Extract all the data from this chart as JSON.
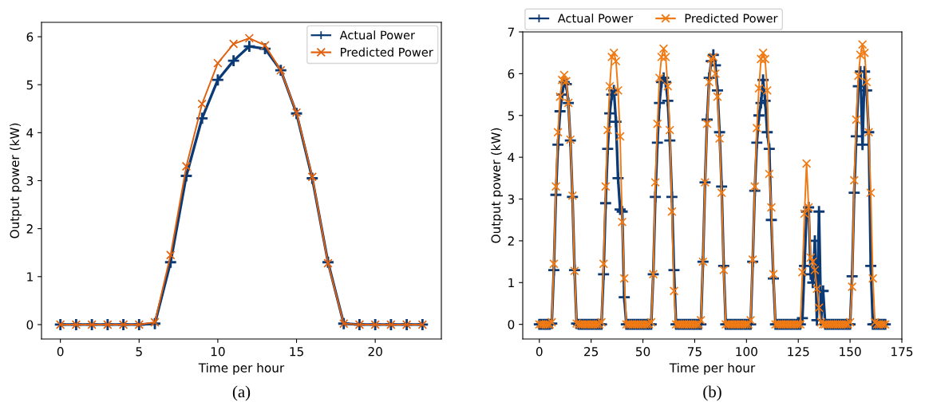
{
  "chart_data": [
    {
      "type": "line",
      "xlabel": "Time per hour",
      "ylabel": "Output power (kW)",
      "annotations": [
        "(a)"
      ],
      "legend": "top right",
      "grid": false,
      "line_style": "solid",
      "x": [
        0,
        1,
        2,
        3,
        4,
        5,
        6,
        7,
        8,
        9,
        10,
        11,
        12,
        13,
        14,
        15,
        16,
        17,
        18,
        19,
        20,
        21,
        22,
        23
      ],
      "xlim": [
        -1.2,
        24.2
      ],
      "xticks": [
        0,
        5,
        10,
        15,
        20
      ],
      "ylim": [
        -0.3,
        6.3
      ],
      "yticks": [
        0,
        1,
        2,
        3,
        4,
        5,
        6
      ],
      "series": [
        {
          "name": "Actual Power",
          "color": "#0b3a75",
          "marker": "plus",
          "values": [
            0,
            0,
            0,
            0,
            0,
            0,
            0.02,
            1.3,
            3.1,
            4.3,
            5.1,
            5.5,
            5.8,
            5.75,
            5.3,
            4.4,
            3.05,
            1.3,
            0.02,
            0,
            0,
            0,
            0,
            0
          ]
        },
        {
          "name": "Predicted Power",
          "color": "#e0600e",
          "marker": "cross",
          "values": [
            0,
            0,
            0,
            0,
            0,
            0,
            0.05,
            1.45,
            3.3,
            4.6,
            5.45,
            5.85,
            5.97,
            5.82,
            5.3,
            4.42,
            3.08,
            1.28,
            0.02,
            0,
            0,
            0,
            0,
            0
          ]
        }
      ]
    },
    {
      "type": "line",
      "xlabel": "Time per hour",
      "ylabel": "Output power (kW)",
      "annotations": [
        "(b)"
      ],
      "legend": "top left",
      "grid": false,
      "line_style": "solid",
      "x": [
        0,
        1,
        2,
        3,
        4,
        5,
        6,
        7,
        8,
        9,
        10,
        11,
        12,
        13,
        14,
        15,
        16,
        17,
        18,
        19,
        20,
        21,
        22,
        23,
        24,
        25,
        26,
        27,
        28,
        29,
        30,
        31,
        32,
        33,
        34,
        35,
        36,
        37,
        38,
        39,
        40,
        41,
        42,
        43,
        44,
        45,
        46,
        47,
        48,
        49,
        50,
        51,
        52,
        53,
        54,
        55,
        56,
        57,
        58,
        59,
        60,
        61,
        62,
        63,
        64,
        65,
        66,
        67,
        68,
        69,
        70,
        71,
        72,
        73,
        74,
        75,
        76,
        77,
        78,
        79,
        80,
        81,
        82,
        83,
        84,
        85,
        86,
        87,
        88,
        89,
        90,
        91,
        92,
        93,
        94,
        95,
        96,
        97,
        98,
        99,
        100,
        101,
        102,
        103,
        104,
        105,
        106,
        107,
        108,
        109,
        110,
        111,
        112,
        113,
        114,
        115,
        116,
        117,
        118,
        119,
        120,
        121,
        122,
        123,
        124,
        125,
        126,
        127,
        128,
        129,
        130,
        131,
        132,
        133,
        134,
        135,
        136,
        137,
        138,
        139,
        140,
        141,
        142,
        143,
        144,
        145,
        146,
        147,
        148,
        149,
        150,
        151,
        152,
        153,
        154,
        155,
        156,
        157,
        158,
        159,
        160,
        161,
        162,
        163,
        164,
        165,
        166,
        167
      ],
      "xlim": [
        -8,
        175
      ],
      "xticks": [
        0,
        25,
        50,
        75,
        100,
        125,
        150,
        175
      ],
      "ylim": [
        -0.35,
        7
      ],
      "yticks": [
        0,
        1,
        2,
        3,
        4,
        5,
        6,
        7
      ],
      "series": [
        {
          "name": "Actual Power",
          "color": "#0b3a75",
          "marker": "plus",
          "values": [
            0,
            0,
            0,
            0,
            0,
            0,
            0.02,
            1.3,
            3.1,
            4.3,
            5.1,
            5.5,
            5.8,
            5.75,
            5.3,
            4.4,
            3.05,
            1.3,
            0.02,
            0,
            0,
            0,
            0,
            0,
            0,
            0,
            0,
            0,
            0,
            0,
            0,
            1.2,
            2.9,
            4.2,
            5.05,
            5.5,
            5.6,
            4.85,
            3.5,
            2.75,
            2.7,
            0.65,
            0,
            0,
            0,
            0,
            0,
            0,
            0,
            0,
            0,
            0,
            0,
            0,
            0,
            1.2,
            3.05,
            4.35,
            5.3,
            5.8,
            5.9,
            5.8,
            5.35,
            4.4,
            3.05,
            1.3,
            0,
            0,
            0,
            0,
            0,
            0,
            0,
            0,
            0,
            0,
            0,
            0,
            0,
            1.5,
            3.4,
            4.9,
            5.9,
            6.3,
            6.45,
            6.2,
            5.6,
            4.6,
            3.3,
            1.4,
            0,
            0,
            0,
            0,
            0,
            0,
            0,
            0,
            0,
            0,
            0,
            0,
            0,
            1.5,
            3.2,
            4.35,
            5.0,
            5.3,
            5.85,
            5.35,
            4.6,
            4.2,
            2.5,
            1.1,
            0,
            0,
            0,
            0,
            0,
            0,
            0,
            0,
            0,
            0,
            0,
            0,
            0,
            0.15,
            1.4,
            2.7,
            2.8,
            1.2,
            1.0,
            2.0,
            0.1,
            2.7,
            0.1,
            0.8,
            0,
            0,
            0,
            0,
            0,
            0,
            0,
            0,
            0,
            0,
            0,
            0,
            0,
            1.15,
            3.15,
            4.5,
            5.7,
            6.05,
            4.3,
            6.05,
            5.6,
            4.6,
            1.4,
            0,
            0,
            0,
            0,
            0,
            0,
            0
          ]
        },
        {
          "name": "Predicted Power",
          "color": "#f07a14",
          "marker": "cross",
          "values": [
            0,
            0,
            0,
            0,
            0,
            0,
            0.05,
            1.45,
            3.3,
            4.6,
            5.45,
            5.85,
            5.97,
            5.82,
            5.3,
            4.42,
            3.08,
            1.28,
            0.02,
            0,
            0,
            0,
            0,
            0,
            0,
            0,
            0,
            0,
            0,
            0,
            0.05,
            1.45,
            3.3,
            4.65,
            5.7,
            6.4,
            6.5,
            6.3,
            5.6,
            4.5,
            2.45,
            1.1,
            0,
            0,
            0,
            0,
            0,
            0,
            0,
            0,
            0,
            0,
            0,
            0,
            0.05,
            1.2,
            3.4,
            4.8,
            5.9,
            6.4,
            6.6,
            6.4,
            5.7,
            4.65,
            2.7,
            0.8,
            0,
            0,
            0,
            0,
            0,
            0,
            0,
            0,
            0,
            0,
            0,
            0,
            0.1,
            1.5,
            3.4,
            4.8,
            5.8,
            6.35,
            6.4,
            6.0,
            5.45,
            4.45,
            3.15,
            1.3,
            0,
            0,
            0,
            0,
            0,
            0,
            0,
            0,
            0,
            0,
            0,
            0,
            0.1,
            1.55,
            3.3,
            4.7,
            5.65,
            6.35,
            6.5,
            6.35,
            5.6,
            3.6,
            2.8,
            1.2,
            0,
            0,
            0,
            0,
            0,
            0,
            0,
            0,
            0,
            0,
            0,
            0,
            0,
            1.25,
            2.65,
            3.85,
            2.8,
            1.6,
            1.5,
            1.3,
            0.85,
            0.4,
            0.05,
            0,
            0,
            0,
            0,
            0,
            0,
            0,
            0,
            0,
            0,
            0,
            0,
            0,
            0.05,
            0.9,
            3.45,
            4.9,
            5.95,
            6.45,
            6.7,
            6.5,
            5.8,
            4.6,
            3.15,
            1.1,
            0.05,
            0,
            0,
            0,
            0,
            0
          ]
        }
      ]
    }
  ]
}
